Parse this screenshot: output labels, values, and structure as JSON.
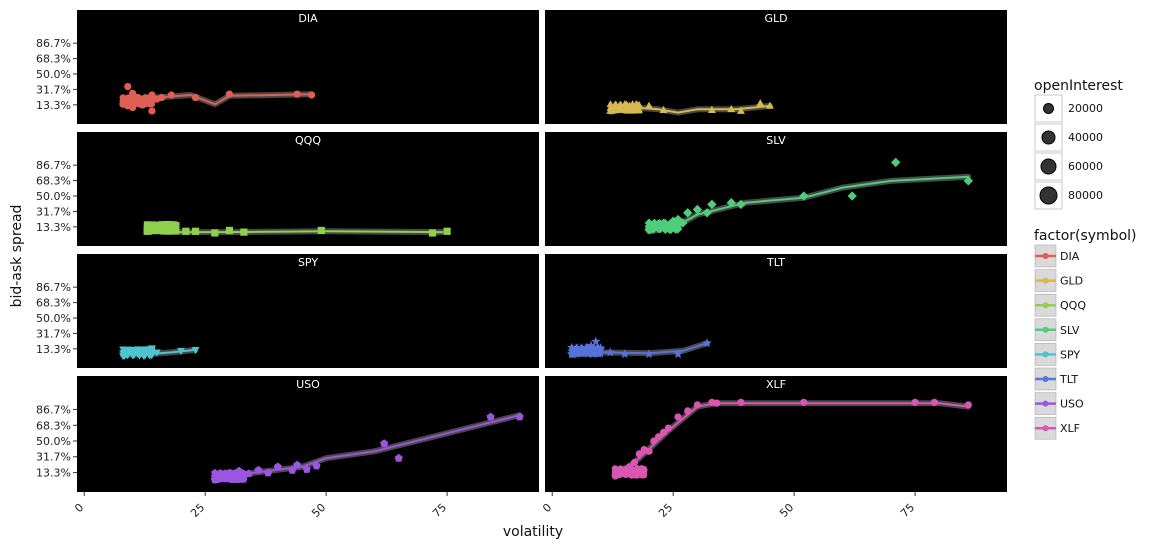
{
  "chart_data": {
    "type": "scatter",
    "facet_by": "symbol",
    "xlabel": "volatility",
    "ylabel": "bid-ask spread",
    "x_ticks": [
      "0",
      "25",
      "50",
      "75"
    ],
    "y_ticks": [
      "13.3%",
      "31.7%",
      "50.0%",
      "68.3%",
      "86.7%"
    ],
    "xlim": [
      0,
      90
    ],
    "ylim": [
      0,
      1.0
    ],
    "legend": {
      "size_title": "openInterest",
      "size_entries": [
        "20000",
        "40000",
        "60000",
        "80000"
      ],
      "color_title": "factor(symbol)",
      "color_entries": [
        "DIA",
        "GLD",
        "QQQ",
        "SLV",
        "SPY",
        "TLT",
        "USO",
        "XLF"
      ]
    },
    "panels": [
      {
        "name": "DIA",
        "color": "#e05f55",
        "marker": "circle",
        "points": [
          [
            8,
            0.14
          ],
          [
            9,
            0.12
          ],
          [
            10,
            0.18
          ],
          [
            10,
            0.1
          ],
          [
            11,
            0.22
          ],
          [
            11,
            0.15
          ],
          [
            12,
            0.13
          ],
          [
            13,
            0.19
          ],
          [
            14,
            0.25
          ],
          [
            15,
            0.2
          ],
          [
            9,
            0.35
          ],
          [
            10,
            0.27
          ],
          [
            14,
            0.06
          ],
          [
            16,
            0.22
          ],
          [
            18,
            0.25
          ],
          [
            23,
            0.22
          ],
          [
            30,
            0.26
          ],
          [
            44,
            0.26
          ],
          [
            47,
            0.25
          ]
        ],
        "smooth": [
          [
            8,
            0.15
          ],
          [
            15,
            0.22
          ],
          [
            22,
            0.25
          ],
          [
            27,
            0.14
          ],
          [
            30,
            0.24
          ],
          [
            47,
            0.26
          ]
        ]
      },
      {
        "name": "GLD",
        "color": "#d9b84e",
        "marker": "triangle",
        "points": [
          [
            12,
            0.06
          ],
          [
            13,
            0.09
          ],
          [
            14,
            0.1
          ],
          [
            15,
            0.07
          ],
          [
            16,
            0.12
          ],
          [
            20,
            0.12
          ],
          [
            23,
            0.07
          ],
          [
            33,
            0.07
          ],
          [
            37,
            0.08
          ],
          [
            39,
            0.06
          ],
          [
            43,
            0.15
          ],
          [
            45,
            0.12
          ]
        ],
        "smooth": [
          [
            12,
            0.05
          ],
          [
            17,
            0.1
          ],
          [
            22,
            0.08
          ],
          [
            26,
            0.04
          ],
          [
            30,
            0.08
          ],
          [
            38,
            0.08
          ],
          [
            45,
            0.12
          ]
        ]
      },
      {
        "name": "QQQ",
        "color": "#8fd14f",
        "marker": "square",
        "points": [
          [
            13,
            0.08
          ],
          [
            14,
            0.1
          ],
          [
            15,
            0.12
          ],
          [
            16,
            0.14
          ],
          [
            17,
            0.16
          ],
          [
            18,
            0.1
          ],
          [
            21,
            0.08
          ],
          [
            23,
            0.08
          ],
          [
            27,
            0.06
          ],
          [
            30,
            0.09
          ],
          [
            33,
            0.07
          ],
          [
            49,
            0.09
          ],
          [
            72,
            0.06
          ],
          [
            75,
            0.08
          ]
        ],
        "smooth": [
          [
            13,
            0.08
          ],
          [
            20,
            0.07
          ],
          [
            30,
            0.07
          ],
          [
            50,
            0.08
          ],
          [
            74,
            0.07
          ]
        ]
      },
      {
        "name": "SLV",
        "color": "#4ece7a",
        "marker": "diamond",
        "points": [
          [
            20,
            0.1
          ],
          [
            22,
            0.13
          ],
          [
            24,
            0.15
          ],
          [
            25,
            0.2
          ],
          [
            26,
            0.22
          ],
          [
            27,
            0.18
          ],
          [
            28,
            0.3
          ],
          [
            30,
            0.34
          ],
          [
            32,
            0.3
          ],
          [
            33,
            0.4
          ],
          [
            37,
            0.42
          ],
          [
            39,
            0.4
          ],
          [
            52,
            0.5
          ],
          [
            62,
            0.5
          ],
          [
            71,
            0.9
          ],
          [
            86,
            0.68
          ]
        ],
        "smooth": [
          [
            20,
            0.08
          ],
          [
            25,
            0.12
          ],
          [
            30,
            0.28
          ],
          [
            40,
            0.42
          ],
          [
            52,
            0.48
          ],
          [
            60,
            0.6
          ],
          [
            70,
            0.68
          ],
          [
            86,
            0.73
          ]
        ]
      },
      {
        "name": "SPY",
        "color": "#4fc3cf",
        "marker": "down-triangle",
        "points": [
          [
            8,
            0.05
          ],
          [
            9,
            0.07
          ],
          [
            10,
            0.06
          ],
          [
            11,
            0.08
          ],
          [
            12,
            0.1
          ],
          [
            13,
            0.12
          ],
          [
            14,
            0.14
          ],
          [
            15,
            0.09
          ],
          [
            20,
            0.11
          ],
          [
            23,
            0.12
          ]
        ],
        "smooth": [
          [
            8,
            0.06
          ],
          [
            13,
            0.07
          ],
          [
            18,
            0.09
          ],
          [
            23,
            0.12
          ]
        ]
      },
      {
        "name": "TLT",
        "color": "#5573d9",
        "marker": "star",
        "points": [
          [
            4,
            0.07
          ],
          [
            6,
            0.09
          ],
          [
            7,
            0.12
          ],
          [
            8,
            0.17
          ],
          [
            9,
            0.22
          ],
          [
            10,
            0.14
          ],
          [
            12,
            0.09
          ],
          [
            15,
            0.07
          ],
          [
            20,
            0.07
          ],
          [
            26,
            0.07
          ],
          [
            32,
            0.2
          ]
        ],
        "smooth": [
          [
            4,
            0.06
          ],
          [
            10,
            0.09
          ],
          [
            20,
            0.08
          ],
          [
            27,
            0.11
          ],
          [
            32,
            0.2
          ]
        ]
      },
      {
        "name": "USO",
        "color": "#9b55e0",
        "marker": "pentagon",
        "points": [
          [
            27,
            0.05
          ],
          [
            29,
            0.08
          ],
          [
            30,
            0.1
          ],
          [
            31,
            0.12
          ],
          [
            32,
            0.15
          ],
          [
            34,
            0.12
          ],
          [
            36,
            0.16
          ],
          [
            38,
            0.13
          ],
          [
            40,
            0.2
          ],
          [
            43,
            0.16
          ],
          [
            44,
            0.22
          ],
          [
            46,
            0.17
          ],
          [
            48,
            0.21
          ],
          [
            62,
            0.47
          ],
          [
            65,
            0.3
          ],
          [
            84,
            0.78
          ],
          [
            90,
            0.78
          ]
        ],
        "smooth": [
          [
            27,
            0.04
          ],
          [
            35,
            0.13
          ],
          [
            45,
            0.2
          ],
          [
            50,
            0.3
          ],
          [
            60,
            0.38
          ],
          [
            70,
            0.52
          ],
          [
            80,
            0.66
          ],
          [
            90,
            0.8
          ]
        ]
      },
      {
        "name": "XLF",
        "color": "#db55b3",
        "marker": "circle",
        "points": [
          [
            13,
            0.1
          ],
          [
            14,
            0.12
          ],
          [
            15,
            0.16
          ],
          [
            16,
            0.2
          ],
          [
            17,
            0.25
          ],
          [
            18,
            0.35
          ],
          [
            19,
            0.4
          ],
          [
            20,
            0.38
          ],
          [
            21,
            0.5
          ],
          [
            22,
            0.55
          ],
          [
            23,
            0.6
          ],
          [
            24,
            0.65
          ],
          [
            26,
            0.78
          ],
          [
            28,
            0.85
          ],
          [
            30,
            0.92
          ],
          [
            33,
            0.95
          ],
          [
            34,
            0.94
          ],
          [
            39,
            0.95
          ],
          [
            52,
            0.95
          ],
          [
            75,
            0.95
          ],
          [
            79,
            0.95
          ],
          [
            86,
            0.92
          ]
        ],
        "smooth": [
          [
            13,
            0.08
          ],
          [
            18,
            0.3
          ],
          [
            24,
            0.62
          ],
          [
            30,
            0.9
          ],
          [
            34,
            0.94
          ],
          [
            80,
            0.94
          ],
          [
            86,
            0.9
          ]
        ]
      }
    ]
  }
}
